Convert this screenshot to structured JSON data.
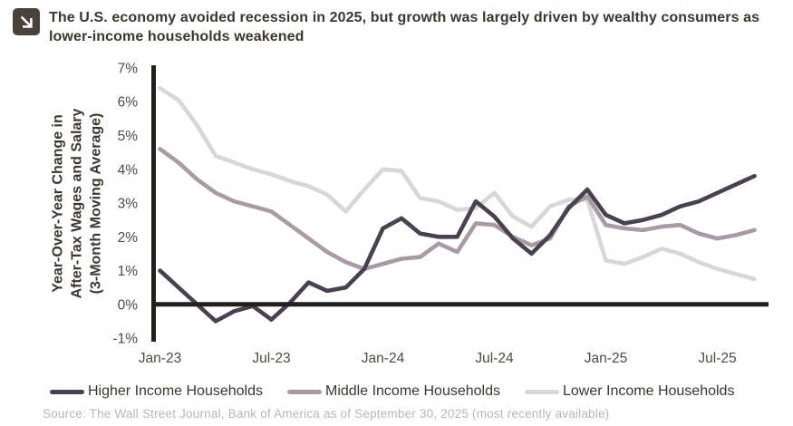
{
  "header": {
    "icon": "arrow-down-right",
    "title": "The U.S. economy avoided recession in 2025, but growth was largely driven by wealthy consumers as lower-income households weakened"
  },
  "chart_data": {
    "type": "line",
    "title": "The U.S. economy avoided recession in 2025, but growth was largely driven by wealthy consumers as lower-income households weakened",
    "grid": false,
    "legend_position": "bottom",
    "axis_color": "#23201d",
    "y_axis": {
      "label_lines": [
        "Year-Over-Year Change in",
        "After-Tax Wages and Salary",
        "(3-Month Moving Average)"
      ],
      "range": [
        -1,
        7
      ],
      "unit": "%",
      "ticks": [
        {
          "label": "7%",
          "value": 7
        },
        {
          "label": "6%",
          "value": 6
        },
        {
          "label": "5%",
          "value": 5
        },
        {
          "label": "4%",
          "value": 4
        },
        {
          "label": "3%",
          "value": 3
        },
        {
          "label": "2%",
          "value": 2
        },
        {
          "label": "1%",
          "value": 1
        },
        {
          "label": "0%",
          "value": 0
        },
        {
          "label": "-1%",
          "value": -1
        }
      ]
    },
    "x_axis": {
      "months": [
        "Jan-23",
        "Feb-23",
        "Mar-23",
        "Apr-23",
        "May-23",
        "Jun-23",
        "Jul-23",
        "Aug-23",
        "Sep-23",
        "Oct-23",
        "Nov-23",
        "Dec-23",
        "Jan-24",
        "Feb-24",
        "Mar-24",
        "Apr-24",
        "May-24",
        "Jun-24",
        "Jul-24",
        "Aug-24",
        "Sep-24",
        "Oct-24",
        "Nov-24",
        "Dec-24",
        "Jan-25",
        "Feb-25",
        "Mar-25",
        "Apr-25",
        "May-25",
        "Jun-25",
        "Jul-25",
        "Aug-25",
        "Sep-25"
      ],
      "ticks": [
        {
          "label": "Jan-23",
          "month_index": 0
        },
        {
          "label": "Jul-23",
          "month_index": 6
        },
        {
          "label": "Jan-24",
          "month_index": 12
        },
        {
          "label": "Jul-24",
          "month_index": 18
        },
        {
          "label": "Jan-25",
          "month_index": 24
        },
        {
          "label": "Jul-25",
          "month_index": 30
        }
      ]
    },
    "series": [
      {
        "id": "higher-income",
        "name": "Higher Income Households",
        "color": "#4a4150",
        "values": [
          1.0,
          0.5,
          0.0,
          -0.5,
          -0.2,
          -0.05,
          -0.45,
          0.05,
          0.65,
          0.4,
          0.5,
          1.05,
          2.25,
          2.55,
          2.1,
          2.0,
          2.0,
          3.05,
          2.6,
          1.95,
          1.5,
          2.05,
          2.85,
          3.4,
          2.65,
          2.4,
          2.5,
          2.65,
          2.9,
          3.05,
          3.3,
          3.55,
          3.8
        ]
      },
      {
        "id": "middle-income",
        "name": "Middle Income Households",
        "color": "#a89ba6",
        "values": [
          4.6,
          4.2,
          3.7,
          3.3,
          3.05,
          2.9,
          2.75,
          2.35,
          1.95,
          1.55,
          1.25,
          1.05,
          1.2,
          1.35,
          1.4,
          1.8,
          1.55,
          2.4,
          2.35,
          2.0,
          1.75,
          1.95,
          2.9,
          3.2,
          2.35,
          2.25,
          2.2,
          2.3,
          2.35,
          2.1,
          1.95,
          2.05,
          2.2
        ]
      },
      {
        "id": "lower-income",
        "name": "Lower Income Households",
        "color": "#d9d6d9",
        "values": [
          6.4,
          6.05,
          5.3,
          4.4,
          4.2,
          4.0,
          3.85,
          3.65,
          3.5,
          3.25,
          2.75,
          3.4,
          4.0,
          3.95,
          3.15,
          3.05,
          2.8,
          2.85,
          3.3,
          2.6,
          2.3,
          2.9,
          3.1,
          3.1,
          1.3,
          1.2,
          1.4,
          1.65,
          1.5,
          1.25,
          1.05,
          0.9,
          0.75
        ]
      }
    ]
  },
  "legend": {
    "items": [
      {
        "label": "Higher Income Households"
      },
      {
        "label": "Middle Income Households"
      },
      {
        "label": "Lower Income Households"
      }
    ]
  },
  "source": "Source: The Wall Street Journal, Bank of America as of September 30, 2025 (most recently available)"
}
